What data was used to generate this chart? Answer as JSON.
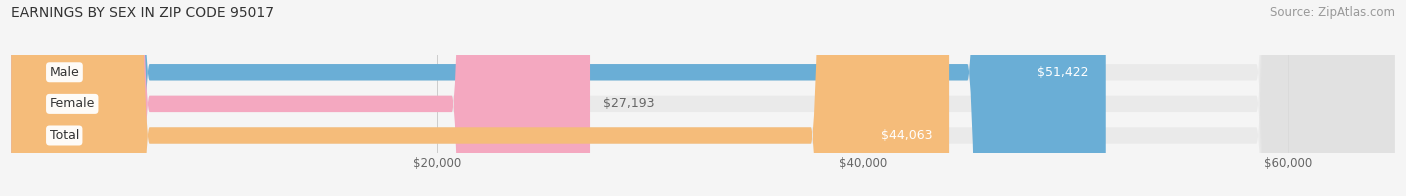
{
  "title": "EARNINGS BY SEX IN ZIP CODE 95017",
  "source": "Source: ZipAtlas.com",
  "categories": [
    "Male",
    "Female",
    "Total"
  ],
  "values": [
    51422,
    27193,
    44063
  ],
  "bar_colors": [
    "#6aaed6",
    "#f4a8c0",
    "#f5bc7a"
  ],
  "label_colors": [
    "white",
    "#666666",
    "white"
  ],
  "bar_bg_color": "#dedede",
  "xmin": 0,
  "xmax": 65000,
  "xticks": [
    20000,
    40000,
    60000
  ],
  "xtick_labels": [
    "$20,000",
    "$40,000",
    "$60,000"
  ],
  "title_fontsize": 10,
  "source_fontsize": 8.5,
  "label_fontsize": 9,
  "value_fontsize": 9,
  "bar_height": 0.52,
  "background_color": "#f5f5f5"
}
